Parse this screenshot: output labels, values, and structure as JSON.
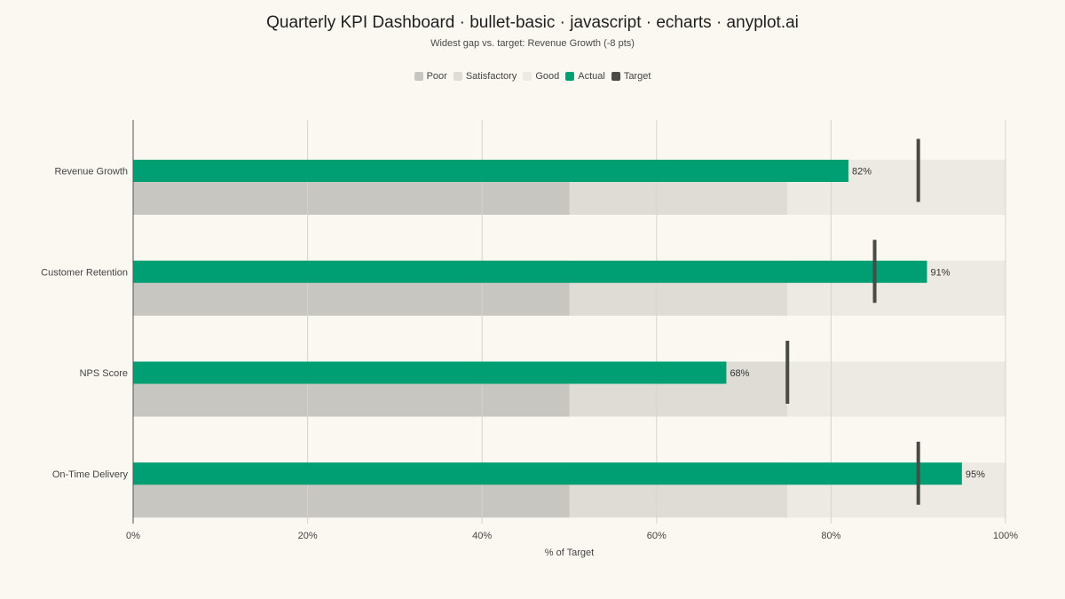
{
  "title": "Quarterly KPI Dashboard · bullet-basic · javascript · echarts · anyplot.ai",
  "subtitle": "Widest gap vs. target: Revenue Growth (-8 pts)",
  "legend": [
    {
      "label": "Poor",
      "color": "#C8C6C0"
    },
    {
      "label": "Satisfactory",
      "color": "#DEDCD5"
    },
    {
      "label": "Good",
      "color": "#EDEAE3"
    },
    {
      "label": "Actual",
      "color": "#009E73"
    },
    {
      "label": "Target",
      "color": "#4A4A46"
    }
  ],
  "chart_data": {
    "type": "bar",
    "subtype": "bullet",
    "categories": [
      "Revenue Growth",
      "Customer Retention",
      "NPS Score",
      "On-Time Delivery"
    ],
    "series": [
      {
        "name": "Actual",
        "values": [
          82,
          91,
          68,
          95
        ]
      },
      {
        "name": "Target",
        "values": [
          90,
          85,
          75,
          90
        ]
      }
    ],
    "data_labels": [
      "82%",
      "91%",
      "68%",
      "95%"
    ],
    "ranges": [
      {
        "name": "Poor",
        "from": 0,
        "to": 50
      },
      {
        "name": "Satisfactory",
        "from": 50,
        "to": 75
      },
      {
        "name": "Good",
        "from": 75,
        "to": 100
      }
    ],
    "xlabel": "% of Target",
    "ylabel": "",
    "xlim": [
      0,
      100
    ],
    "xticks": [
      0,
      20,
      40,
      60,
      80,
      100
    ],
    "xtick_labels": [
      "0%",
      "20%",
      "40%",
      "60%",
      "80%",
      "100%"
    ],
    "grid": true,
    "legend_position": "top-center",
    "colors": {
      "poor": "#C8C6C0",
      "satisfactory": "#DEDCD5",
      "good": "#EDEAE3",
      "actual": "#009E73",
      "target": "#4A4A46",
      "grid": "#D6D3CB",
      "axis": "#555555"
    }
  }
}
